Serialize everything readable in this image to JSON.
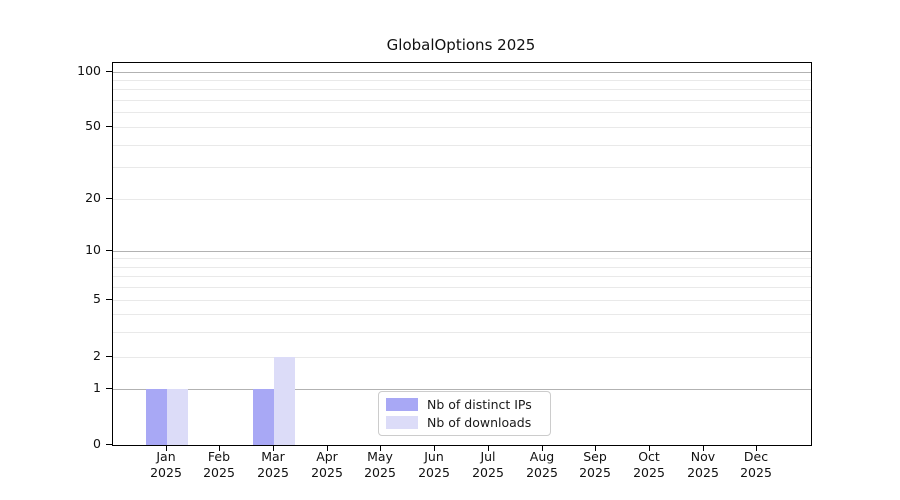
{
  "chart_data": {
    "type": "bar",
    "title": "GlobalOptions 2025",
    "categories": [
      "Jan",
      "Feb",
      "Mar",
      "Apr",
      "May",
      "Jun",
      "Jul",
      "Aug",
      "Sep",
      "Oct",
      "Nov",
      "Dec"
    ],
    "year_label": "2025",
    "series": [
      {
        "name": "Nb of distinct IPs",
        "color": "#a8a8f5",
        "values": [
          1,
          0,
          1,
          0,
          0,
          0,
          0,
          0,
          0,
          0,
          0,
          0
        ]
      },
      {
        "name": "Nb of downloads",
        "color": "#dcdcf8",
        "values": [
          1,
          0,
          2,
          0,
          0,
          0,
          0,
          0,
          0,
          0,
          0,
          0
        ]
      }
    ],
    "y_axis": {
      "ticks": [
        0,
        1,
        2,
        5,
        10,
        20,
        50,
        100
      ],
      "scale": "log-like (0 baseline, log above 1)",
      "ylim": [
        0,
        110
      ]
    },
    "grid": {
      "major_values": [
        1,
        10,
        100
      ],
      "minor_values": [
        2,
        3,
        4,
        5,
        6,
        7,
        8,
        9,
        20,
        30,
        40,
        50,
        60,
        70,
        80,
        90
      ],
      "major_color": "#b2b2b2",
      "minor_color": "#e9e9e9"
    },
    "legend": {
      "position": "inside-bottom-center"
    },
    "colors": {
      "axis": "#000000",
      "text": "#111111",
      "background": "#ffffff"
    }
  }
}
